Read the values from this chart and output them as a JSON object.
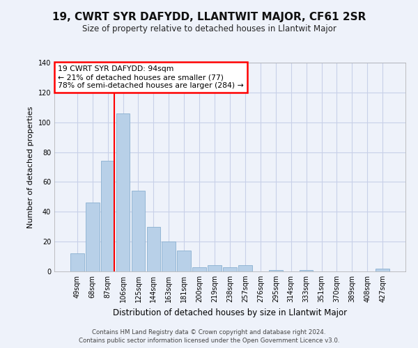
{
  "title": "19, CWRT SYR DAFYDD, LLANTWIT MAJOR, CF61 2SR",
  "subtitle": "Size of property relative to detached houses in Llantwit Major",
  "xlabel": "Distribution of detached houses by size in Llantwit Major",
  "ylabel": "Number of detached properties",
  "bar_labels": [
    "49sqm",
    "68sqm",
    "87sqm",
    "106sqm",
    "125sqm",
    "144sqm",
    "163sqm",
    "181sqm",
    "200sqm",
    "219sqm",
    "238sqm",
    "257sqm",
    "276sqm",
    "295sqm",
    "314sqm",
    "333sqm",
    "351sqm",
    "370sqm",
    "389sqm",
    "408sqm",
    "427sqm"
  ],
  "bar_values": [
    12,
    46,
    74,
    106,
    54,
    30,
    20,
    14,
    3,
    4,
    3,
    4,
    0,
    1,
    0,
    1,
    0,
    0,
    0,
    0,
    2
  ],
  "bar_color": "#b8d0e8",
  "bar_edge_color": "#8ab0d0",
  "annotation_text": "19 CWRT SYR DAFYDD: 94sqm\n← 21% of detached houses are smaller (77)\n78% of semi-detached houses are larger (284) →",
  "ylim": [
    0,
    140
  ],
  "yticks": [
    0,
    20,
    40,
    60,
    80,
    100,
    120,
    140
  ],
  "footer_line1": "Contains HM Land Registry data © Crown copyright and database right 2024.",
  "footer_line2": "Contains public sector information licensed under the Open Government Licence v3.0.",
  "bg_color": "#eef2fa",
  "grid_color": "#c8d0e8"
}
